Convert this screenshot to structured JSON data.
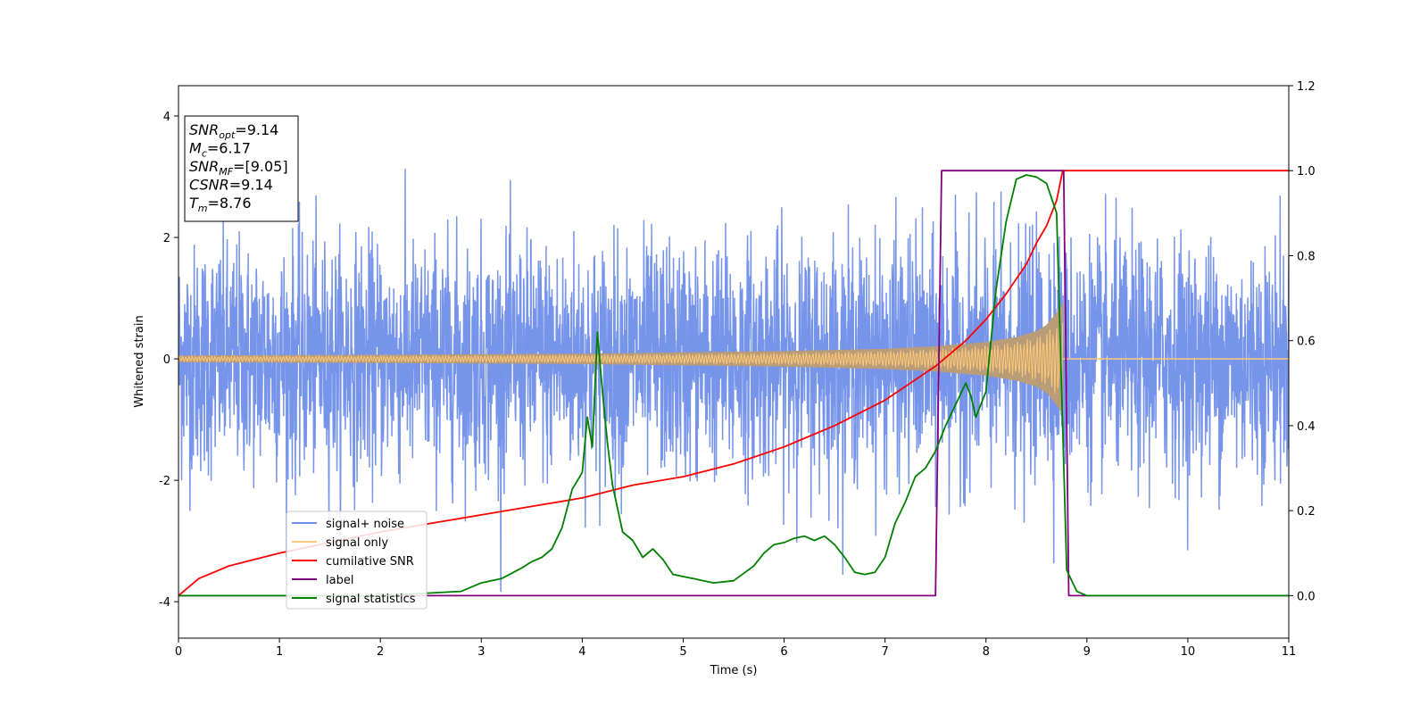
{
  "chart_data": {
    "type": "line",
    "xlabel": "Time (s)",
    "ylabel": "Whitened strain",
    "xlim": [
      0,
      11
    ],
    "ylim": [
      -4.6,
      4.5
    ],
    "y2lim": [
      -0.1,
      1.2
    ],
    "x_ticks": [
      0,
      1,
      2,
      3,
      4,
      5,
      6,
      7,
      8,
      9,
      10,
      11
    ],
    "y_ticks": [
      -4,
      -2,
      0,
      2,
      4
    ],
    "y2_ticks": [
      "0.0",
      "0.2",
      "0.4",
      "0.6",
      "0.8",
      "1.0",
      "1.2"
    ],
    "grid": false,
    "legend_position": "lower-left",
    "annotation": [
      {
        "var": "SNR",
        "sub": "opt",
        "value": "9.14"
      },
      {
        "var": "M",
        "sub": "c",
        "value": "6.17"
      },
      {
        "var": "SNR",
        "sub": "MF",
        "value": "[9.05]"
      },
      {
        "var": "CSNR",
        "sub": "",
        "value": "9.14"
      },
      {
        "var": "T",
        "sub": "m",
        "value": "8.76"
      }
    ],
    "series": [
      {
        "name": "signal+ noise",
        "axis": "left",
        "color": "#6f8ee8",
        "kind": "noise",
        "noise_sigma": 0.95,
        "x_range": [
          0,
          11
        ]
      },
      {
        "name": "signal only",
        "axis": "left",
        "color": "#ffc878",
        "fill_color": "#b99c78",
        "kind": "chirp",
        "merger_time": 8.76,
        "envelope": {
          "x": [
            0,
            2,
            4,
            5,
            6,
            7,
            7.5,
            8,
            8.3,
            8.5,
            8.6,
            8.7,
            8.76
          ],
          "y": [
            0.05,
            0.06,
            0.08,
            0.1,
            0.12,
            0.16,
            0.2,
            0.27,
            0.35,
            0.45,
            0.55,
            0.75,
            0.9
          ]
        }
      },
      {
        "name": "cumilative SNR",
        "axis": "right",
        "color": "#ff0000",
        "x": [
          0,
          0.2,
          0.5,
          1,
          1.5,
          2,
          2.5,
          3,
          3.5,
          4,
          4.5,
          5,
          5.5,
          6,
          6.5,
          7,
          7.5,
          7.8,
          8,
          8.2,
          8.4,
          8.5,
          8.6,
          8.7,
          8.76,
          11
        ],
        "y": [
          0.0,
          0.04,
          0.07,
          0.1,
          0.125,
          0.15,
          0.17,
          0.19,
          0.21,
          0.23,
          0.26,
          0.28,
          0.31,
          0.35,
          0.4,
          0.46,
          0.54,
          0.6,
          0.65,
          0.71,
          0.78,
          0.83,
          0.87,
          0.93,
          1.0,
          1.0
        ]
      },
      {
        "name": "label",
        "axis": "right",
        "color": "#800080",
        "x": [
          0,
          7.5,
          7.56,
          8.77,
          8.82,
          11
        ],
        "y": [
          0,
          0,
          1,
          1,
          0,
          0
        ]
      },
      {
        "name": "signal statistics",
        "axis": "right",
        "color": "#008000",
        "x": [
          0,
          1,
          2,
          2.4,
          2.8,
          3.0,
          3.2,
          3.4,
          3.5,
          3.6,
          3.7,
          3.8,
          3.9,
          4.0,
          4.05,
          4.1,
          4.15,
          4.2,
          4.25,
          4.3,
          4.4,
          4.5,
          4.6,
          4.7,
          4.8,
          4.9,
          5.0,
          5.1,
          5.3,
          5.5,
          5.7,
          5.8,
          5.9,
          6.0,
          6.1,
          6.2,
          6.3,
          6.4,
          6.5,
          6.6,
          6.7,
          6.8,
          6.9,
          7.0,
          7.1,
          7.2,
          7.3,
          7.4,
          7.5,
          7.6,
          7.7,
          7.8,
          7.85,
          7.9,
          8.0,
          8.1,
          8.2,
          8.3,
          8.4,
          8.5,
          8.6,
          8.7,
          8.8,
          8.9,
          9.0,
          10,
          11
        ],
        "y": [
          0.0,
          0.0,
          0.0,
          0.005,
          0.01,
          0.03,
          0.04,
          0.065,
          0.08,
          0.09,
          0.11,
          0.16,
          0.25,
          0.29,
          0.42,
          0.35,
          0.62,
          0.48,
          0.36,
          0.26,
          0.15,
          0.13,
          0.09,
          0.11,
          0.085,
          0.05,
          0.045,
          0.04,
          0.03,
          0.035,
          0.07,
          0.1,
          0.12,
          0.125,
          0.135,
          0.14,
          0.13,
          0.14,
          0.12,
          0.09,
          0.055,
          0.05,
          0.055,
          0.09,
          0.17,
          0.22,
          0.28,
          0.3,
          0.34,
          0.4,
          0.45,
          0.5,
          0.47,
          0.42,
          0.48,
          0.72,
          0.88,
          0.98,
          0.99,
          0.985,
          0.97,
          0.9,
          0.06,
          0.01,
          0.0,
          0.0,
          0.0
        ]
      }
    ]
  }
}
